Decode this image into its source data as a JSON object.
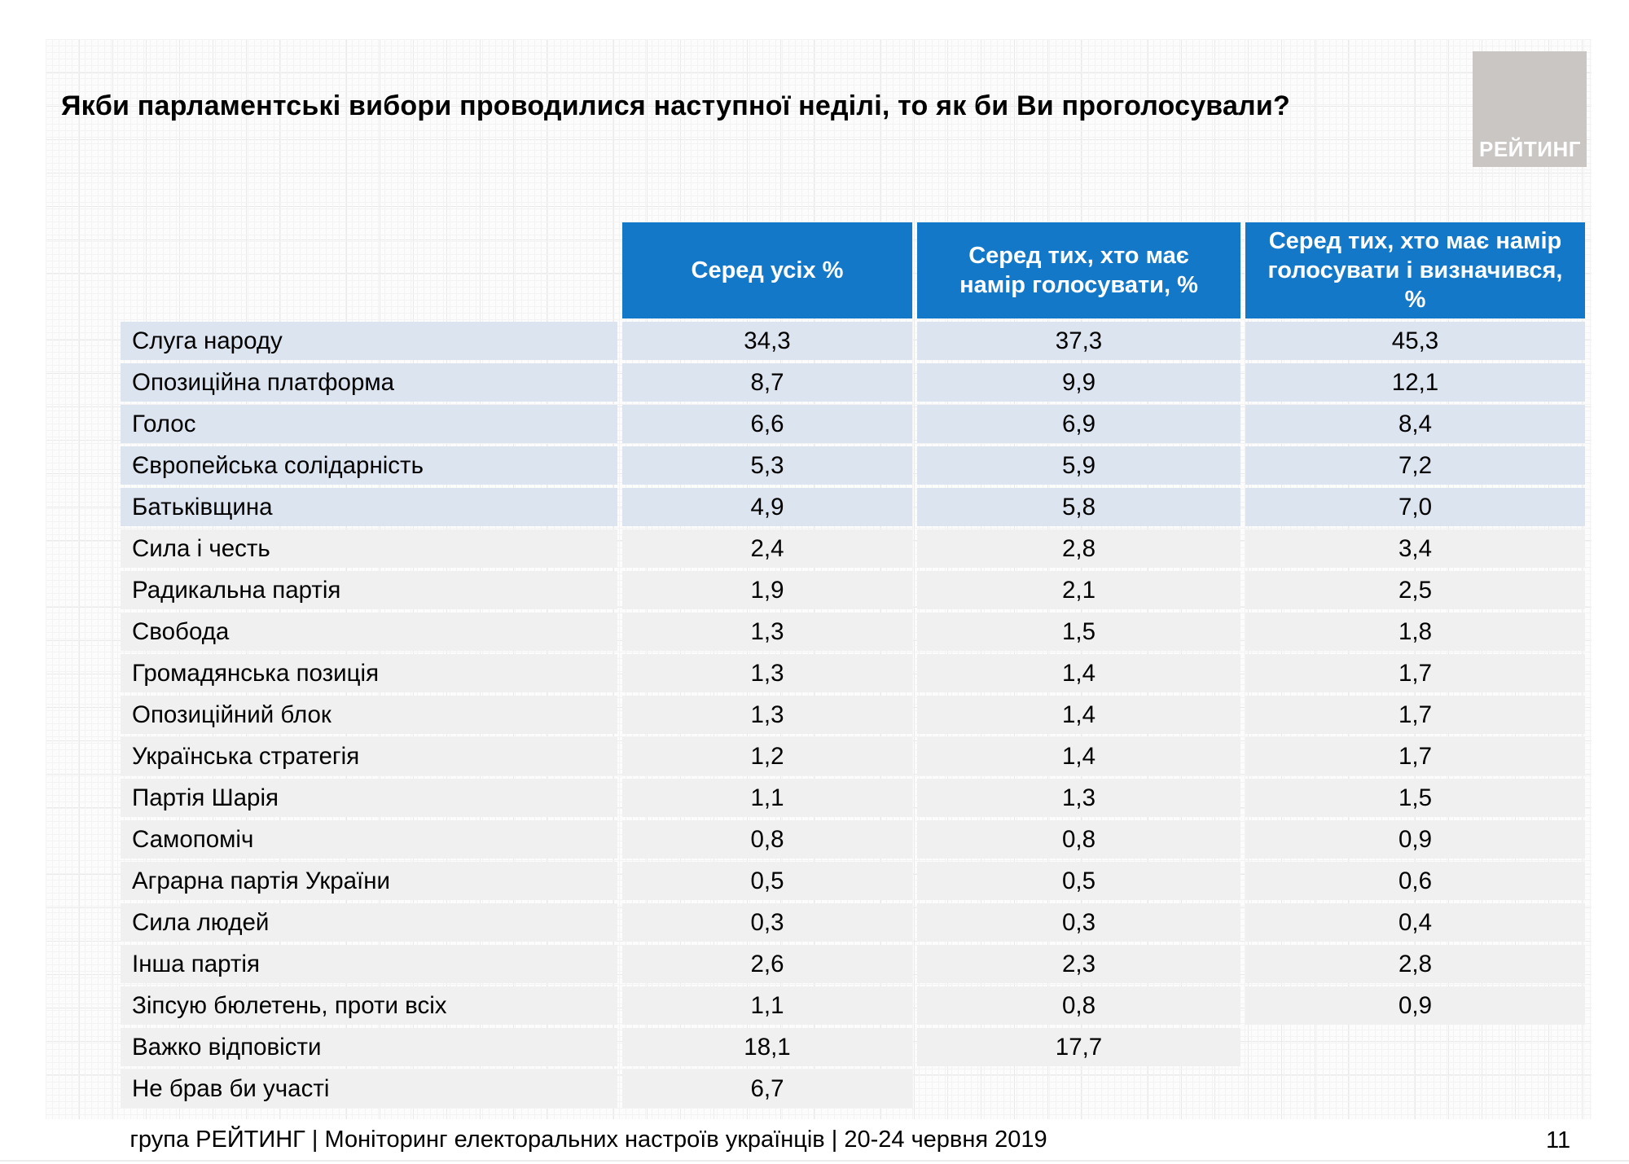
{
  "page": {
    "title": "Якби парламентські вибори проводилися наступної неділі, то як би Ви проголосували?",
    "footer": "група РЕЙТИНГ | Моніторинг електоральних настроїв українців | 20-24 червня 2019",
    "page_number": "11",
    "logo_text": "РЕЙТИНГ"
  },
  "colors": {
    "header_bg": "#1478c8",
    "row_blue": "#dce4f0",
    "row_gray": "#f0f0f0",
    "logo_bg": "#c9c6c3",
    "header_text": "#ffffff"
  },
  "chart_data": {
    "type": "table",
    "title": "Якби парламентські вибори проводилися наступної неділі, то як би Ви проголосували?",
    "columns": [
      "Серед усіх %",
      "Серед тих, хто має намір голосувати, %",
      "Серед тих, хто має намір голосувати і визначився, %"
    ],
    "rows": [
      {
        "label": "Слуга народу",
        "values": [
          "34,3",
          "37,3",
          "45,3"
        ],
        "highlight": true
      },
      {
        "label": "Опозиційна платформа",
        "values": [
          "8,7",
          "9,9",
          "12,1"
        ],
        "highlight": true
      },
      {
        "label": "Голос",
        "values": [
          "6,6",
          "6,9",
          "8,4"
        ],
        "highlight": true
      },
      {
        "label": "Європейська солідарність",
        "values": [
          "5,3",
          "5,9",
          "7,2"
        ],
        "highlight": true
      },
      {
        "label": "Батьківщина",
        "values": [
          "4,9",
          "5,8",
          "7,0"
        ],
        "highlight": true
      },
      {
        "label": "Сила і честь",
        "values": [
          "2,4",
          "2,8",
          "3,4"
        ],
        "highlight": false
      },
      {
        "label": "Радикальна партія",
        "values": [
          "1,9",
          "2,1",
          "2,5"
        ],
        "highlight": false
      },
      {
        "label": "Свобода",
        "values": [
          "1,3",
          "1,5",
          "1,8"
        ],
        "highlight": false
      },
      {
        "label": "Громадянська позиція",
        "values": [
          "1,3",
          "1,4",
          "1,7"
        ],
        "highlight": false
      },
      {
        "label": "Опозиційний блок",
        "values": [
          "1,3",
          "1,4",
          "1,7"
        ],
        "highlight": false
      },
      {
        "label": "Українська стратегія",
        "values": [
          "1,2",
          "1,4",
          "1,7"
        ],
        "highlight": false
      },
      {
        "label": "Партія Шарія",
        "values": [
          "1,1",
          "1,3",
          "1,5"
        ],
        "highlight": false
      },
      {
        "label": "Самопоміч",
        "values": [
          "0,8",
          "0,8",
          "0,9"
        ],
        "highlight": false
      },
      {
        "label": "Аграрна партія України",
        "values": [
          "0,5",
          "0,5",
          "0,6"
        ],
        "highlight": false
      },
      {
        "label": "Сила людей",
        "values": [
          "0,3",
          "0,3",
          "0,4"
        ],
        "highlight": false
      },
      {
        "label": "Інша партія",
        "values": [
          "2,6",
          "2,3",
          "2,8"
        ],
        "highlight": false
      },
      {
        "label": "Зіпсую бюлетень, проти всіх",
        "values": [
          "1,1",
          "0,8",
          "0,9"
        ],
        "highlight": false
      },
      {
        "label": "Важко відповісти",
        "values": [
          "18,1",
          "17,7",
          null
        ],
        "highlight": false
      },
      {
        "label": "Не брав би участі",
        "values": [
          "6,7",
          null,
          null
        ],
        "highlight": false
      }
    ]
  }
}
